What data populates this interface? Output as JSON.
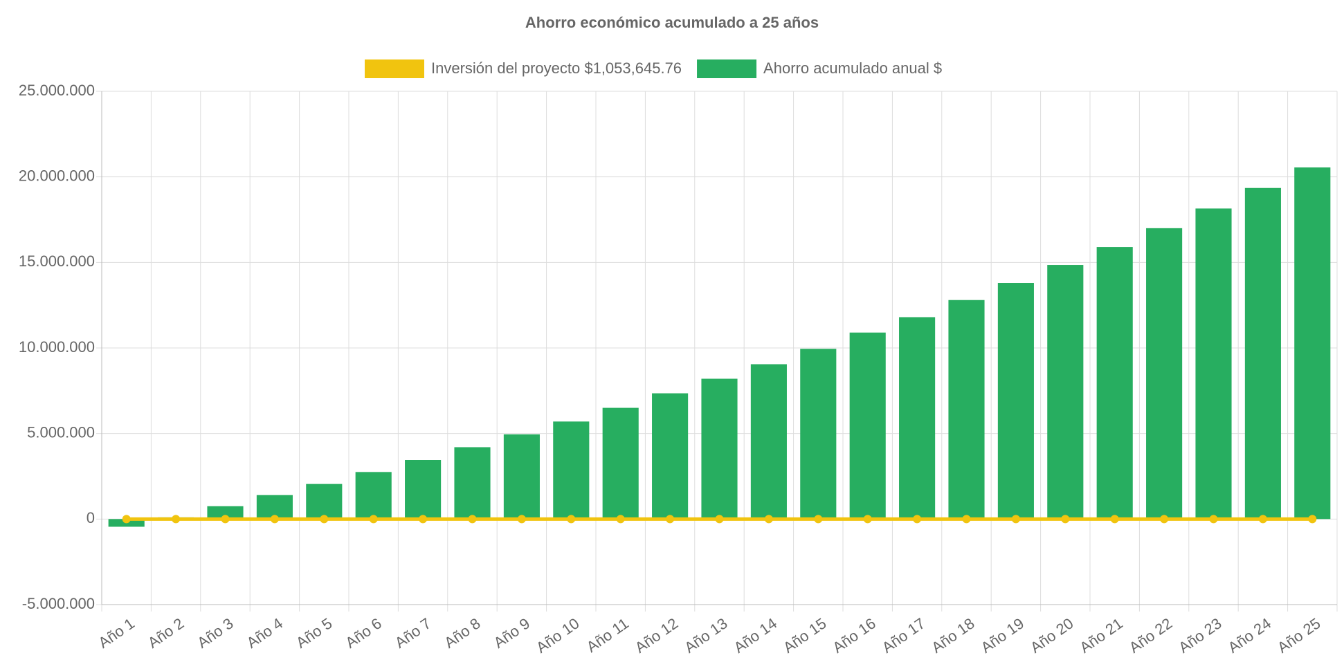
{
  "chart_data": {
    "type": "bar",
    "title": "Ahorro económico acumulado a 25 años",
    "categories": [
      "Año 1",
      "Año 2",
      "Año 3",
      "Año 4",
      "Año 5",
      "Año 6",
      "Año 7",
      "Año 8",
      "Año 9",
      "Año 10",
      "Año 11",
      "Año 12",
      "Año 13",
      "Año 14",
      "Año 15",
      "Año 16",
      "Año 17",
      "Año 18",
      "Año 19",
      "Año 20",
      "Año 21",
      "Año 22",
      "Año 23",
      "Año 24",
      "Año 25"
    ],
    "series": [
      {
        "name": "Inversión del proyecto $1,053,645.76",
        "type": "line",
        "color": "#f1c40f",
        "values": [
          0,
          0,
          0,
          0,
          0,
          0,
          0,
          0,
          0,
          0,
          0,
          0,
          0,
          0,
          0,
          0,
          0,
          0,
          0,
          0,
          0,
          0,
          0,
          0,
          0
        ]
      },
      {
        "name": "Ahorro acumulado anual $",
        "type": "bar",
        "color": "#27ae60",
        "values": [
          -450000,
          100000,
          750000,
          1400000,
          2050000,
          2750000,
          3450000,
          4200000,
          4950000,
          5700000,
          6500000,
          7350000,
          8200000,
          9050000,
          9950000,
          10900000,
          11800000,
          12800000,
          13800000,
          14850000,
          15900000,
          17000000,
          18150000,
          19350000,
          20550000
        ]
      }
    ],
    "ylim": [
      -5000000,
      25000000
    ],
    "yticks": [
      {
        "value": -5000000,
        "label": "-5.000.000"
      },
      0,
      {
        "value": 5000000,
        "label": "5.000.000"
      },
      {
        "value": 10000000,
        "label": "10.000.000"
      },
      {
        "value": 15000000,
        "label": "15.000.000"
      },
      {
        "value": 20000000,
        "label": "20.000.000"
      },
      {
        "value": 25000000,
        "label": "25.000.000"
      }
    ],
    "grid": true,
    "legend": "top"
  }
}
